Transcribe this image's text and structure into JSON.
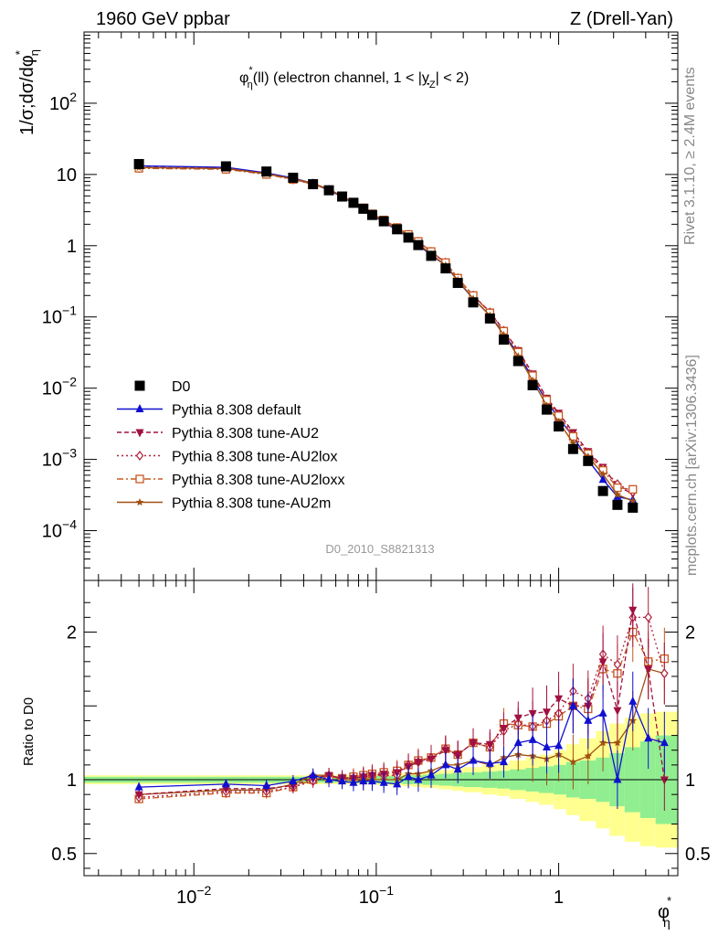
{
  "header": {
    "left": "1960 GeV ppbar",
    "right": "Z (Drell-Yan)",
    "side_top": "Rivet 3.1.10, ≥ 2.4M events",
    "side_bottom": "mcplots.cern.ch [arXiv:1306.3436]",
    "analysis": "D0_2010_S8821313"
  },
  "colors": {
    "data": "#000000",
    "default": "#1010d0",
    "au2": "#a01040",
    "au2lox": "#b0203c",
    "au2loxx": "#c85820",
    "au2m": "#a05010",
    "band_inner": "#90ee90",
    "band_outer": "#ffff90"
  },
  "chart_data": [
    {
      "type": "line",
      "panel": "main",
      "title_parts": {
        "pre": "φ",
        "sup": "*",
        "sub": "η",
        "mid": "(ll) (electron channel, 1 < |",
        "y": "y",
        "ysub": "Z",
        "post": "| < 2)"
      },
      "ylabel_parts": {
        "a": "1/σ;dσ/dφ",
        "sup": "*",
        "sub": "η"
      },
      "xscale": "log",
      "yscale": "log",
      "xlim": [
        0.0025,
        4.5
      ],
      "ylim": [
        2e-05,
        1000
      ],
      "yticks": [
        {
          "v": 0.0001,
          "m": "10",
          "e": "−4"
        },
        {
          "v": 0.001,
          "m": "10",
          "e": "−3"
        },
        {
          "v": 0.01,
          "m": "10",
          "e": "−2"
        },
        {
          "v": 0.1,
          "m": "10",
          "e": "−1"
        },
        {
          "v": 1,
          "m": "1",
          "e": ""
        },
        {
          "v": 10,
          "m": "10",
          "e": ""
        },
        {
          "v": 100,
          "m": "10",
          "e": "2"
        }
      ],
      "legend_position": "bottom-left",
      "x": [
        0.005,
        0.015,
        0.025,
        0.035,
        0.045,
        0.055,
        0.065,
        0.075,
        0.085,
        0.095,
        0.11,
        0.13,
        0.15,
        0.17,
        0.2,
        0.24,
        0.28,
        0.34,
        0.42,
        0.5,
        0.6,
        0.72,
        0.86,
        1.0,
        1.2,
        1.45,
        1.75,
        2.1,
        2.55,
        3.1,
        3.8
      ],
      "series": [
        {
          "name": "D0",
          "style": "data",
          "values": [
            14.0,
            13.0,
            11.0,
            9.0,
            7.3,
            6.0,
            4.9,
            4.0,
            3.3,
            2.7,
            2.2,
            1.7,
            1.3,
            1.02,
            0.72,
            0.48,
            0.3,
            0.16,
            0.095,
            0.048,
            0.024,
            0.011,
            0.005,
            0.0029,
            0.0014,
            0.00095,
            0.00036,
            0.00023,
            0.00021,
            0,
            0
          ]
        },
        {
          "name": "Pythia 8.308 default",
          "style": "default",
          "values": [
            13.2,
            12.6,
            10.5,
            8.9,
            7.5,
            6.0,
            4.85,
            3.92,
            3.2,
            2.65,
            2.15,
            1.65,
            1.32,
            1.02,
            0.74,
            0.53,
            0.32,
            0.18,
            0.105,
            0.058,
            0.03,
            0.014,
            0.0065,
            0.0038,
            0.0021,
            0.00098,
            0.00052,
            0.0003,
            0.00027,
            0,
            0
          ]
        },
        {
          "name": "Pythia 8.308 tune-AU2",
          "style": "au2",
          "values": [
            12.6,
            12.2,
            10.3,
            8.6,
            7.4,
            6.2,
            4.95,
            4.05,
            3.38,
            2.78,
            2.28,
            1.78,
            1.42,
            1.14,
            0.82,
            0.58,
            0.35,
            0.2,
            0.118,
            0.065,
            0.034,
            0.016,
            0.0073,
            0.0045,
            0.0024,
            0.0013,
            0.00078,
            0.00042,
            0.00033,
            0,
            0
          ]
        },
        {
          "name": "Pythia 8.308 tune-AU2lox",
          "style": "au2lox",
          "values": [
            12.3,
            11.9,
            10.1,
            8.5,
            7.3,
            6.1,
            4.9,
            4.02,
            3.35,
            2.76,
            2.26,
            1.76,
            1.43,
            1.14,
            0.82,
            0.58,
            0.35,
            0.2,
            0.116,
            0.064,
            0.033,
            0.015,
            0.007,
            0.0042,
            0.0022,
            0.00125,
            0.00075,
            0.00045,
            0.00035,
            0,
            0
          ]
        },
        {
          "name": "Pythia 8.308 tune-AU2loxx",
          "style": "au2loxx",
          "values": [
            12.2,
            11.8,
            10.0,
            8.5,
            7.3,
            6.1,
            4.95,
            4.1,
            3.4,
            2.8,
            2.3,
            1.8,
            1.44,
            1.15,
            0.83,
            0.58,
            0.35,
            0.2,
            0.114,
            0.063,
            0.032,
            0.015,
            0.0068,
            0.0041,
            0.0021,
            0.0012,
            0.0007,
            0.0004,
            0.00038,
            0,
            0
          ]
        },
        {
          "name": "Pythia 8.308 tune-AU2m",
          "style": "au2m",
          "values": [
            12.5,
            12.1,
            10.2,
            8.7,
            7.5,
            6.2,
            4.9,
            3.98,
            3.28,
            2.7,
            2.2,
            1.7,
            1.35,
            1.06,
            0.76,
            0.53,
            0.33,
            0.18,
            0.105,
            0.056,
            0.028,
            0.0128,
            0.0057,
            0.0034,
            0.0017,
            0.0011,
            0.00062,
            0.00032,
            0.00026,
            0,
            0
          ]
        }
      ]
    },
    {
      "type": "line",
      "panel": "ratio",
      "ylabel": "Ratio to D0",
      "xlabel_parts": {
        "a": "φ",
        "sup": "*",
        "sub": "η"
      },
      "xscale": "log",
      "xlim": [
        0.0025,
        4.5
      ],
      "ylim": [
        0.35,
        2.35
      ],
      "yticks": [
        {
          "v": 0.5,
          "label": "0.5"
        },
        {
          "v": 1,
          "label": "1"
        },
        {
          "v": 2,
          "label": "2"
        }
      ],
      "xticks": [
        {
          "v": 0.01,
          "m": "10",
          "e": "−2"
        },
        {
          "v": 0.1,
          "m": "10",
          "e": "−1"
        },
        {
          "v": 1,
          "m": "1",
          "e": ""
        }
      ],
      "x": [
        0.005,
        0.015,
        0.025,
        0.035,
        0.045,
        0.055,
        0.065,
        0.075,
        0.085,
        0.095,
        0.11,
        0.13,
        0.15,
        0.17,
        0.2,
        0.24,
        0.28,
        0.34,
        0.42,
        0.5,
        0.6,
        0.72,
        0.86,
        1.0,
        1.2,
        1.45,
        1.75,
        2.1,
        2.55,
        3.1,
        3.8
      ],
      "band_edges": [
        0.0025,
        0.01,
        0.02,
        0.03,
        0.04,
        0.05,
        0.06,
        0.07,
        0.08,
        0.09,
        0.1,
        0.12,
        0.14,
        0.16,
        0.18,
        0.22,
        0.26,
        0.3,
        0.38,
        0.46,
        0.54,
        0.66,
        0.78,
        0.94,
        1.1,
        1.3,
        1.6,
        1.9,
        2.3,
        2.8,
        3.4,
        4.5
      ],
      "band_inner": [
        0.02,
        0.02,
        0.02,
        0.02,
        0.02,
        0.02,
        0.02,
        0.02,
        0.02,
        0.02,
        0.025,
        0.025,
        0.03,
        0.03,
        0.035,
        0.04,
        0.045,
        0.05,
        0.055,
        0.06,
        0.07,
        0.08,
        0.09,
        0.1,
        0.12,
        0.13,
        0.15,
        0.18,
        0.22,
        0.26,
        0.3
      ],
      "band_outer": [
        0.03,
        0.03,
        0.03,
        0.03,
        0.03,
        0.03,
        0.03,
        0.03,
        0.03,
        0.03,
        0.035,
        0.04,
        0.045,
        0.05,
        0.055,
        0.065,
        0.075,
        0.085,
        0.1,
        0.11,
        0.13,
        0.15,
        0.17,
        0.2,
        0.24,
        0.28,
        0.33,
        0.38,
        0.42,
        0.45,
        0.46
      ],
      "series": [
        {
          "name": "Pythia 8.308 default",
          "style": "default",
          "values": [
            0.95,
            0.97,
            0.96,
            0.99,
            1.03,
            1.0,
            0.99,
            0.98,
            0.99,
            0.99,
            0.98,
            0.97,
            1.02,
            1.0,
            1.03,
            1.1,
            1.07,
            1.13,
            1.11,
            1.12,
            1.25,
            1.27,
            1.22,
            1.23,
            1.5,
            1.4,
            1.45,
            1.0,
            1.53,
            1.28,
            1.25
          ]
        },
        {
          "name": "Pythia 8.308 tune-AU2",
          "style": "au2",
          "values": [
            0.9,
            0.94,
            0.94,
            0.96,
            1.01,
            1.03,
            1.01,
            1.01,
            1.02,
            1.03,
            1.04,
            1.05,
            1.09,
            1.12,
            1.14,
            1.2,
            1.17,
            1.25,
            1.24,
            1.35,
            1.42,
            1.45,
            1.46,
            1.55,
            1.5,
            1.5,
            1.8,
            1.47,
            2.15,
            1.75,
            1.0
          ]
        },
        {
          "name": "Pythia 8.308 tune-AU2lox",
          "style": "au2lox",
          "values": [
            0.88,
            0.92,
            0.92,
            0.95,
            0.99,
            1.03,
            1.01,
            1.01,
            1.02,
            1.03,
            1.03,
            1.03,
            1.1,
            1.12,
            1.15,
            1.21,
            1.17,
            1.25,
            1.22,
            1.33,
            1.38,
            1.36,
            1.4,
            1.45,
            1.6,
            1.55,
            1.85,
            1.78,
            2.1,
            2.1,
            1.72
          ]
        },
        {
          "name": "Pythia 8.308 tune-AU2loxx",
          "style": "au2loxx",
          "values": [
            0.87,
            0.91,
            0.91,
            0.95,
            1.0,
            1.02,
            1.01,
            1.02,
            1.03,
            1.04,
            1.05,
            1.06,
            1.1,
            1.13,
            1.15,
            1.21,
            1.17,
            1.25,
            1.22,
            1.38,
            1.37,
            1.36,
            1.38,
            1.43,
            1.5,
            1.48,
            1.75,
            1.72,
            2.0,
            1.8,
            1.82
          ]
        },
        {
          "name": "Pythia 8.308 tune-AU2m",
          "style": "au2m",
          "values": [
            0.9,
            0.93,
            0.93,
            0.97,
            1.03,
            1.03,
            1.0,
            1.0,
            0.99,
            1.0,
            1.0,
            1.0,
            1.04,
            1.04,
            1.06,
            1.1,
            1.1,
            1.13,
            1.1,
            1.15,
            1.17,
            1.16,
            1.14,
            1.17,
            1.12,
            1.16,
            1.25,
            1.25,
            1.4,
            1.75,
            1.72
          ]
        }
      ]
    }
  ]
}
